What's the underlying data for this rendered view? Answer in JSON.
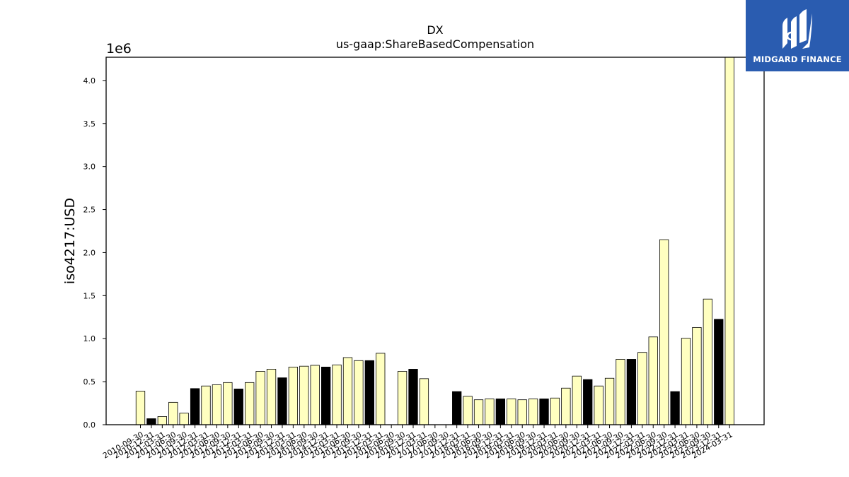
{
  "logo": {
    "text": "MIDGARD FINANCE",
    "background": "#2a5cb0",
    "icon": "midgard-m-logo-icon"
  },
  "chart_data": {
    "type": "bar",
    "title": "DX",
    "subtitle": "us-gaap:ShareBasedCompensation",
    "ylabel": "iso4217:USD",
    "xlabel": "",
    "y_offset_label": "1e6",
    "ylim": [
      0,
      4270000
    ],
    "yticks": [
      0.0,
      0.5,
      1.0,
      1.5,
      2.0,
      2.5,
      3.0,
      3.5,
      4.0
    ],
    "ytick_labels": [
      "0.0",
      "0.5",
      "1.0",
      "1.5",
      "2.0",
      "2.5",
      "3.0",
      "3.5",
      "4.0"
    ],
    "grid": false,
    "colors": {
      "default": "#ffffc0",
      "highlight": "#000000",
      "edge": "#000000"
    },
    "categories": [
      "2010-09-30",
      "2010-12-31",
      "2011-03-31",
      "2011-06-30",
      "2011-09-30",
      "2011-12-31",
      "2012-03-31",
      "2012-06-30",
      "2012-09-30",
      "2012-12-31",
      "2013-03-31",
      "2013-06-30",
      "2013-09-30",
      "2013-12-31",
      "2014-03-31",
      "2014-06-30",
      "2014-09-30",
      "2014-12-31",
      "2015-03-31",
      "2015-06-30",
      "2015-09-30",
      "2015-12-31",
      "2016-03-31",
      "2016-06-30",
      "2016-09-30",
      "2016-12-31",
      "2017-03-31",
      "2017-06-30",
      "2017-09-30",
      "2017-12-31",
      "2018-03-31",
      "2018-06-30",
      "2018-09-30",
      "2018-12-31",
      "2019-03-31",
      "2019-06-30",
      "2019-09-30",
      "2019-12-31",
      "2020-03-31",
      "2020-06-30",
      "2020-09-30",
      "2020-12-31",
      "2021-03-31",
      "2021-06-30",
      "2021-09-30",
      "2021-12-31",
      "2022-03-31",
      "2022-06-30",
      "2022-09-30",
      "2022-12-31",
      "2023-03-31",
      "2023-06-30",
      "2023-09-30",
      "2023-12-31",
      "2024-03-31"
    ],
    "values": [
      390000,
      70000,
      95000,
      260000,
      135000,
      420000,
      450000,
      465000,
      490000,
      415000,
      490000,
      620000,
      645000,
      545000,
      670000,
      680000,
      690000,
      670000,
      695000,
      780000,
      745000,
      745000,
      830000,
      0,
      620000,
      645000,
      535000,
      0,
      0,
      385000,
      330000,
      290000,
      300000,
      300000,
      300000,
      290000,
      300000,
      300000,
      310000,
      425000,
      565000,
      525000,
      450000,
      540000,
      760000,
      760000,
      840000,
      1020000,
      2150000,
      385000,
      1005000,
      1130000,
      1460000,
      1225000,
      4270000
    ],
    "highlighted": [
      "2010-12-31",
      "2011-12-31",
      "2012-12-31",
      "2013-12-31",
      "2014-12-31",
      "2015-12-31",
      "2016-12-31",
      "2017-12-31",
      "2018-12-31",
      "2019-12-31",
      "2020-12-31",
      "2021-12-31",
      "2022-12-31",
      "2023-12-31"
    ]
  }
}
